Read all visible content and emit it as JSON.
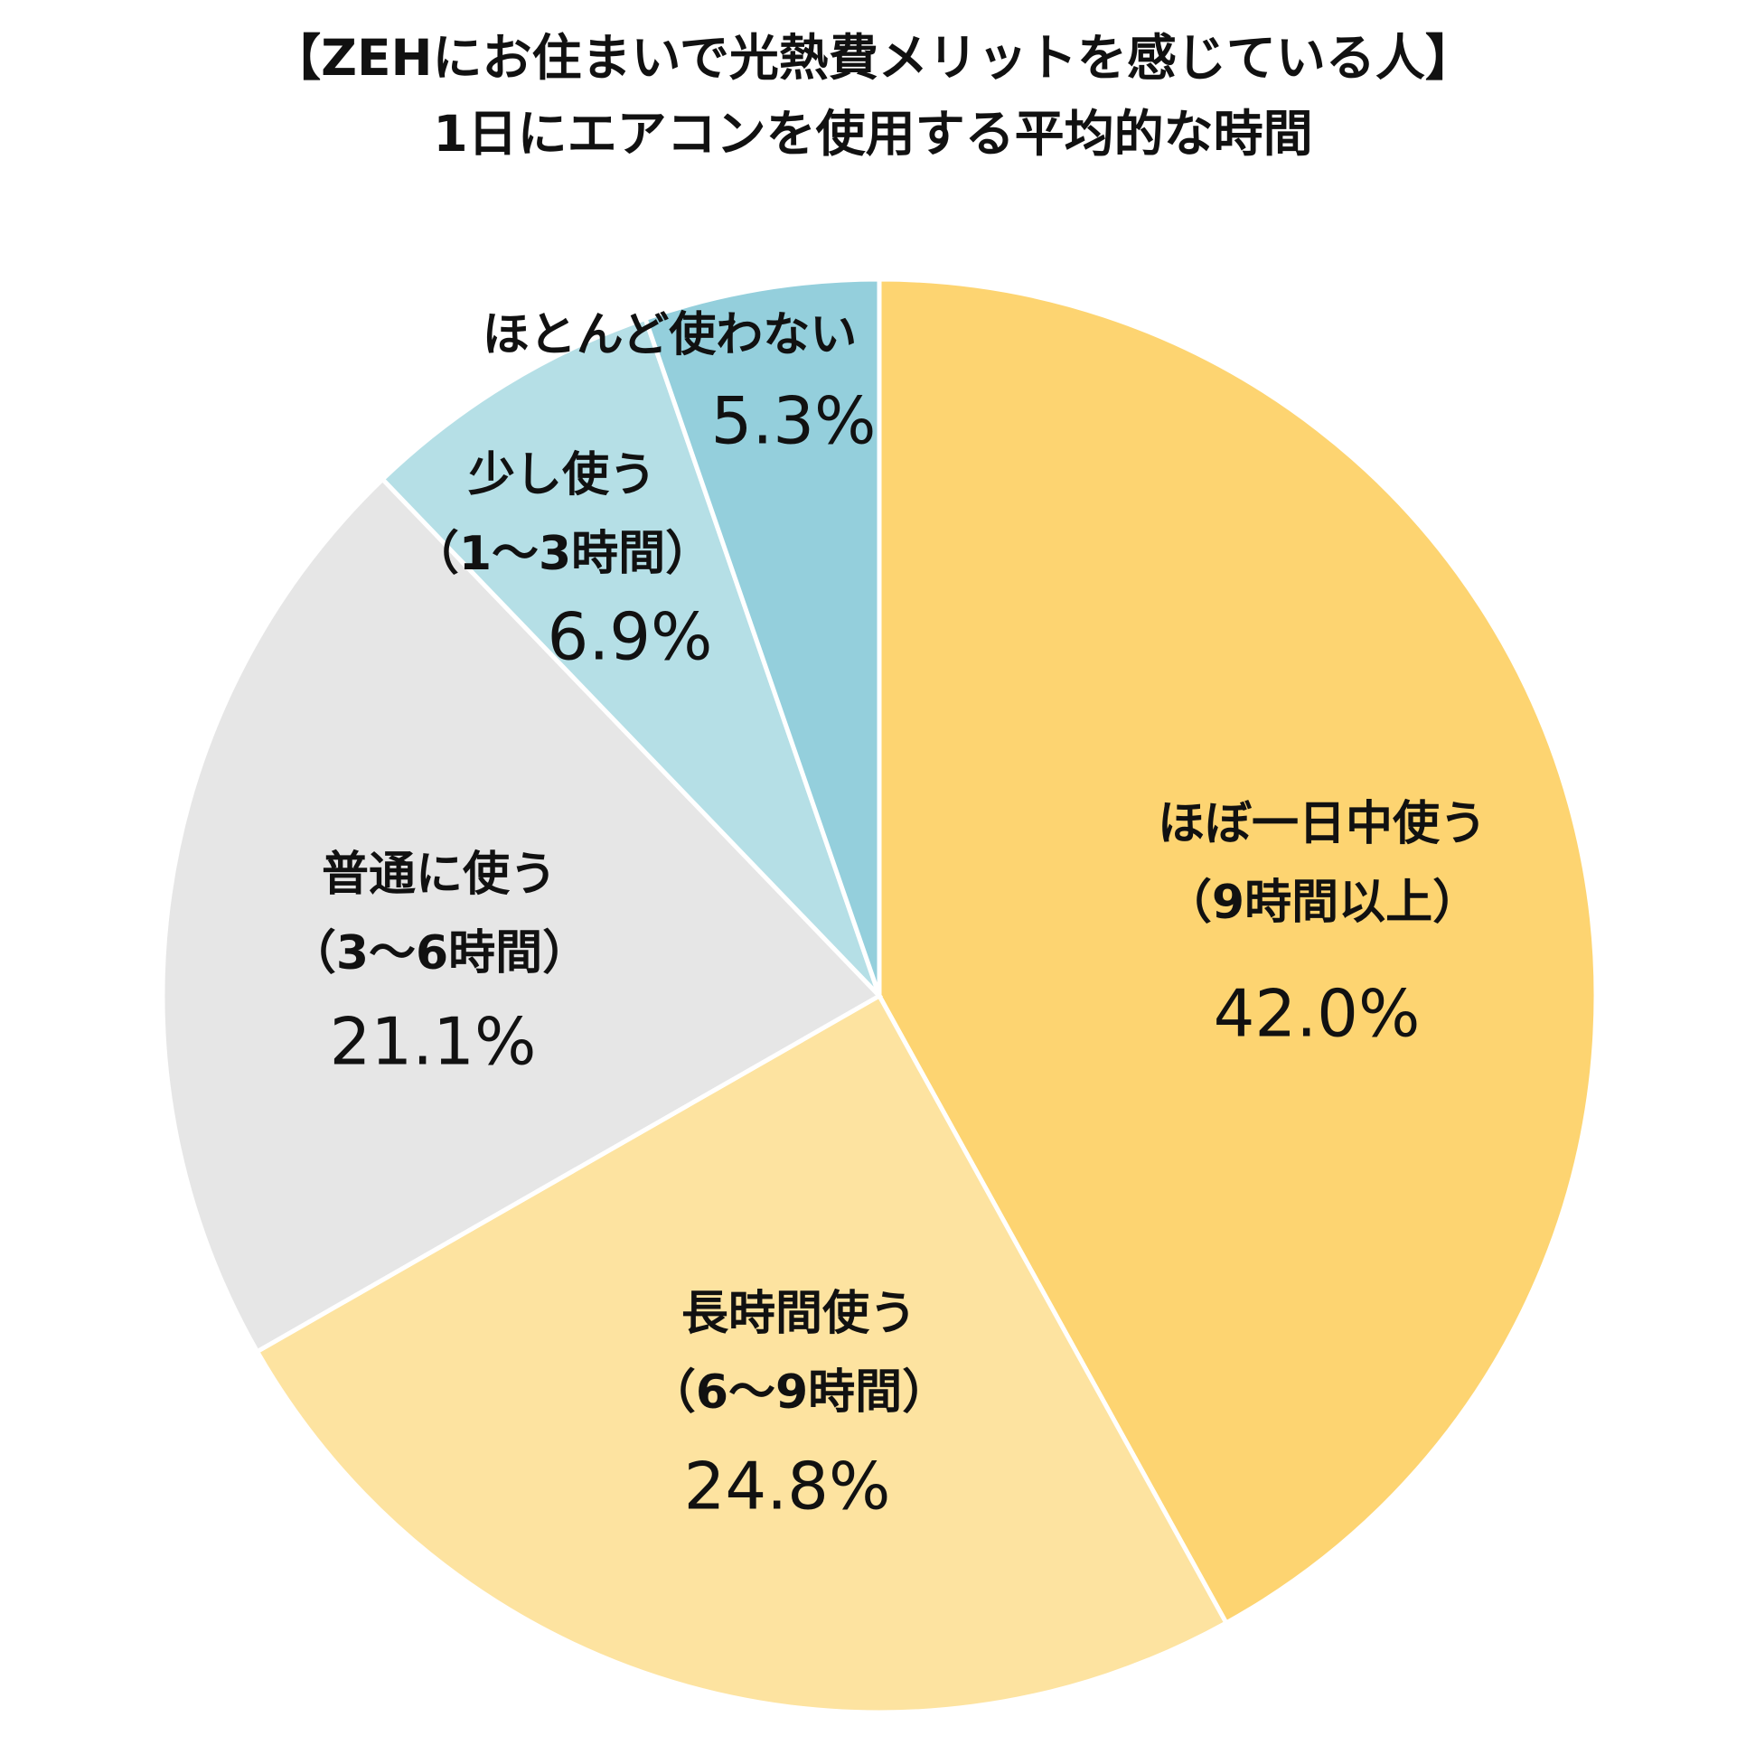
{
  "chart_data": {
    "type": "pie",
    "title": "【ZEHにお住まいで光熱費メリットを感じている人】",
    "subtitle": "1日にエアコンを使用する平均的な時間",
    "categories": [
      [
        "ほぼ一日中使う",
        "（9時間以上）"
      ],
      [
        "長時間使う",
        "（6〜9時間）"
      ],
      [
        "普通に使う",
        "（3〜6時間）"
      ],
      [
        "少し使う",
        "（1〜3時間）"
      ],
      [
        "ほとんど使わない"
      ]
    ],
    "values": [
      42.0,
      24.8,
      21.1,
      6.9,
      5.3
    ],
    "value_labels": [
      "42.0%",
      "24.8%",
      "21.1%",
      "6.9%",
      "5.3%"
    ],
    "colors": [
      "#fdd471",
      "#fde3a0",
      "#e6e6e6",
      "#b5dfe6",
      "#94cfdc"
    ]
  }
}
